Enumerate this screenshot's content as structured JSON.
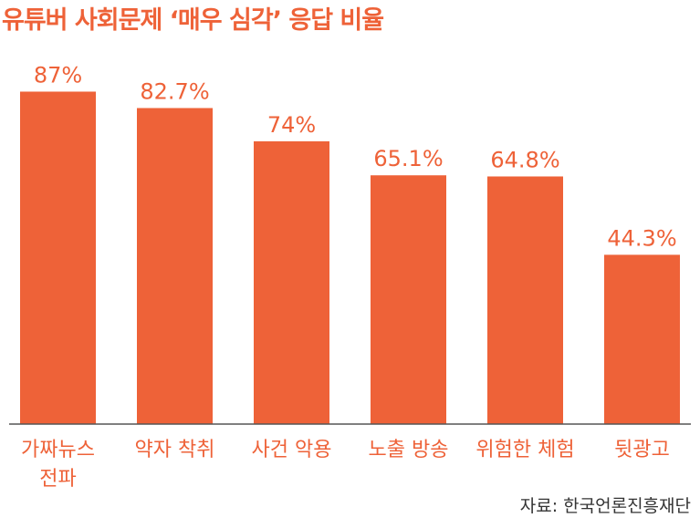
{
  "title": "유튜버 사회문제 ‘매우 심각’ 응답 비율",
  "source": "자료: 한국언론진흥재단",
  "colors": {
    "bar": "#EE6238",
    "text": "#EE6238",
    "axis": "#555555",
    "source": "#333333"
  },
  "chart_data": {
    "type": "bar",
    "title": "유튜버 사회문제 ‘매우 심각’ 응답 비율",
    "categories": [
      [
        "가짜뉴스",
        "전파"
      ],
      [
        "약자 착취"
      ],
      [
        "사건 악용"
      ],
      [
        "노출 방송"
      ],
      [
        "위험한 체험"
      ],
      [
        "뒷광고"
      ]
    ],
    "values": [
      87,
      82.7,
      74,
      65.1,
      64.8,
      44.3
    ],
    "value_labels": [
      "87%",
      "82.7%",
      "74%",
      "65.1%",
      "64.8%",
      "44.3%"
    ],
    "xlabel": "",
    "ylabel": "",
    "unit": "%",
    "ylim": [
      0,
      100
    ],
    "grid": false,
    "legend": "none"
  }
}
